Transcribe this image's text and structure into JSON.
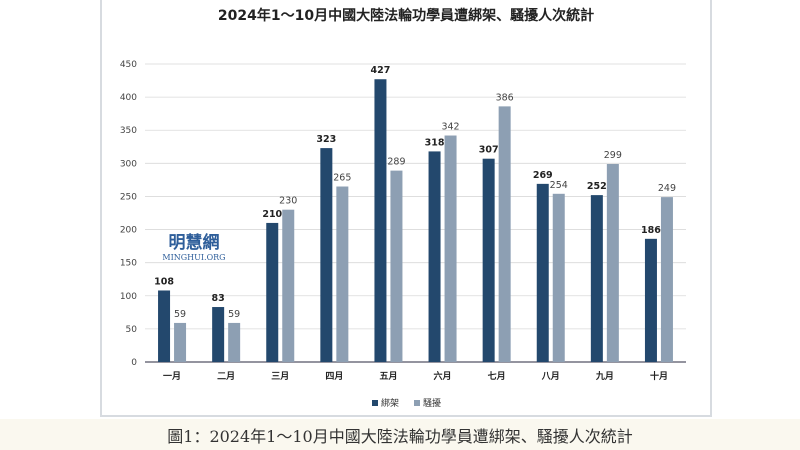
{
  "chart_data": {
    "type": "bar",
    "title": "2024年1～10月中國大陸法輪功學員遭綁架、騷擾人次統計",
    "categories": [
      "一月",
      "二月",
      "三月",
      "四月",
      "五月",
      "六月",
      "七月",
      "八月",
      "九月",
      "十月"
    ],
    "series": [
      {
        "name": "綁架",
        "color": "#23486d",
        "values": [
          108,
          83,
          210,
          323,
          427,
          318,
          307,
          269,
          252,
          186
        ]
      },
      {
        "name": "騷擾",
        "color": "#8d9fb3",
        "values": [
          59,
          59,
          230,
          265,
          289,
          342,
          386,
          254,
          299,
          249
        ]
      }
    ],
    "yticks": [
      0,
      50,
      100,
      150,
      200,
      250,
      300,
      350,
      400,
      450
    ],
    "ylim": [
      0,
      450
    ],
    "xlabel": "",
    "ylabel": "",
    "grid": true,
    "legend": "bottom-center"
  },
  "watermark": {
    "name": "明慧網",
    "site": "MINGHUI.ORG"
  },
  "caption": "圖1：2024年1～10月中國大陸法輪功學員遭綁架、騷擾人次統計"
}
